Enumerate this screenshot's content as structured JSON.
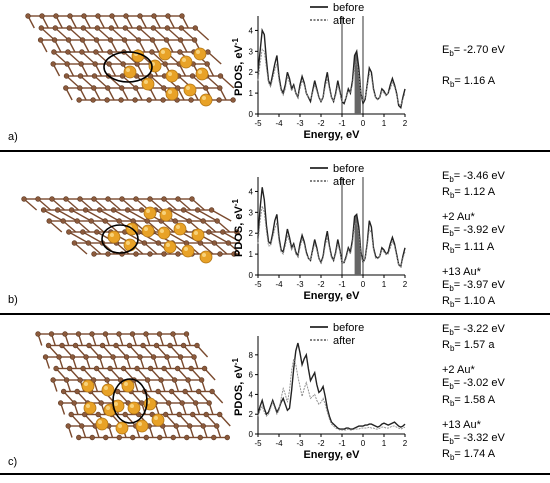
{
  "panels": [
    {
      "label": "a)",
      "legend": [
        "before",
        "after"
      ],
      "ylabel": "PDOS, eV",
      "ylabel_sup": "-1",
      "xlabel": "Energy, eV",
      "notes": [
        [
          {
            "sym": "E",
            "sub": "b",
            "val": "= -2.70 eV"
          }
        ],
        [
          {
            "sym": "R",
            "sub": "b",
            "val": "= 1.16 A"
          }
        ]
      ]
    },
    {
      "label": "b)",
      "legend": [
        "before",
        "after"
      ],
      "ylabel": "PDOS, eV",
      "ylabel_sup": "-1",
      "xlabel": "Energy, eV",
      "notes": [
        [
          {
            "sym": "E",
            "sub": "b",
            "val": "= -3.46 eV"
          },
          {
            "sym": "R",
            "sub": "b",
            "val": "= 1.12 A"
          }
        ],
        [
          {
            "plain": "+2 Au*"
          },
          {
            "sym": "E",
            "sub": "b",
            "val": "= -3.92 eV"
          },
          {
            "sym": "R",
            "sub": "b",
            "val": "= 1.11 A"
          }
        ],
        [
          {
            "plain": "+13 Au*"
          },
          {
            "sym": "E",
            "sub": "b",
            "val": "= -3.97 eV"
          },
          {
            "sym": "R",
            "sub": "b",
            "val": "= 1.10 A"
          }
        ]
      ]
    },
    {
      "label": "c)",
      "legend": [
        "before",
        "after"
      ],
      "ylabel": "PDOS, eV",
      "ylabel_sup": "-1",
      "xlabel": "Energy, eV",
      "notes": [
        [
          {
            "sym": "E",
            "sub": "b",
            "val": "= -3.22 eV"
          },
          {
            "sym": "R",
            "sub": "b",
            "val": "= 1.57 a"
          }
        ],
        [
          {
            "plain": "+2 Au*"
          },
          {
            "sym": "E",
            "sub": "b",
            "val": "= -3.02 eV"
          },
          {
            "sym": "R",
            "sub": "b",
            "val": "= 1.58 A"
          }
        ],
        [
          {
            "plain": "+13 Au*"
          },
          {
            "sym": "E",
            "sub": "b",
            "val": "= -3.32 eV"
          },
          {
            "sym": "R",
            "sub": "b",
            "val": "= 1.74 A"
          }
        ]
      ]
    }
  ],
  "chart_data": [
    {
      "type": "line",
      "xlim": [
        -5,
        2
      ],
      "ylim": [
        0,
        4.5
      ],
      "xticks": [
        -5,
        -4,
        -3,
        -2,
        -1,
        0,
        1,
        2
      ],
      "yticks": [
        0,
        1,
        2,
        3,
        4
      ],
      "vlines": [
        -1,
        0
      ],
      "shade": [
        -0.4,
        -0.1
      ],
      "colors": {
        "before": "#222222",
        "after": "#888888",
        "shade": "#666666"
      },
      "series": [
        {
          "name": "before",
          "x": [
            -5,
            -4.9,
            -4.8,
            -4.7,
            -4.6,
            -4.5,
            -4.4,
            -4.3,
            -4.2,
            -4.1,
            -4.0,
            -3.9,
            -3.8,
            -3.7,
            -3.6,
            -3.5,
            -3.4,
            -3.3,
            -3.2,
            -3.1,
            -3.0,
            -2.9,
            -2.8,
            -2.7,
            -2.6,
            -2.5,
            -2.4,
            -2.3,
            -2.2,
            -2.1,
            -2.0,
            -1.9,
            -1.8,
            -1.7,
            -1.6,
            -1.5,
            -1.4,
            -1.3,
            -1.2,
            -1.1,
            -1.0,
            -0.9,
            -0.8,
            -0.7,
            -0.6,
            -0.5,
            -0.4,
            -0.3,
            -0.2,
            -0.1,
            0.0,
            0.1,
            0.2,
            0.3,
            0.4,
            0.5,
            0.6,
            0.7,
            0.8,
            0.9,
            1.0,
            1.1,
            1.2,
            1.3,
            1.4,
            1.5,
            1.6,
            1.7,
            1.8,
            1.9,
            2.0
          ],
          "y": [
            2.0,
            3.0,
            4.0,
            3.8,
            2.6,
            1.6,
            1.4,
            1.9,
            2.4,
            2.8,
            1.8,
            1.2,
            1.0,
            1.4,
            2.0,
            1.7,
            1.2,
            1.4,
            1.0,
            0.8,
            1.4,
            1.8,
            1.5,
            1.0,
            0.8,
            0.6,
            1.1,
            1.6,
            1.2,
            0.8,
            0.6,
            0.8,
            1.5,
            2.0,
            1.3,
            0.8,
            0.6,
            1.0,
            1.6,
            1.1,
            0.6,
            0.5,
            0.8,
            1.2,
            1.0,
            1.6,
            2.8,
            3.0,
            2.2,
            1.0,
            0.5,
            0.7,
            1.4,
            2.2,
            2.0,
            1.2,
            0.8,
            0.7,
            0.8,
            1.2,
            1.1,
            0.9,
            1.0,
            1.4,
            1.7,
            1.4,
            1.0,
            0.4,
            0.3,
            0.8,
            1.2
          ]
        },
        {
          "name": "after",
          "x": [
            -5,
            -4.9,
            -4.8,
            -4.7,
            -4.6,
            -4.5,
            -4.4,
            -4.3,
            -4.2,
            -4.1,
            -4.0,
            -3.9,
            -3.8,
            -3.7,
            -3.6,
            -3.5,
            -3.4,
            -3.3,
            -3.2,
            -3.1,
            -3.0,
            -2.9,
            -2.8,
            -2.7,
            -2.6,
            -2.5,
            -2.4,
            -2.3,
            -2.2,
            -2.1,
            -2.0,
            -1.9,
            -1.8,
            -1.7,
            -1.6,
            -1.5,
            -1.4,
            -1.3,
            -1.2,
            -1.1,
            -1.0,
            -0.9,
            -0.8,
            -0.7,
            -0.6,
            -0.5,
            -0.4,
            -0.3,
            -0.2,
            -0.1,
            0.0,
            0.1,
            0.2,
            0.3,
            0.4,
            0.5,
            0.6,
            0.7,
            0.8,
            0.9,
            1.0,
            1.1,
            1.2,
            1.3,
            1.4,
            1.5,
            1.6,
            1.7,
            1.8,
            1.9,
            2.0
          ],
          "y": [
            1.6,
            2.4,
            3.1,
            3.0,
            2.2,
            1.5,
            1.3,
            1.7,
            2.1,
            2.4,
            1.6,
            1.1,
            0.9,
            1.2,
            1.8,
            1.5,
            1.1,
            1.3,
            1.0,
            0.8,
            1.2,
            1.6,
            1.4,
            1.0,
            0.8,
            0.7,
            1.0,
            1.4,
            1.1,
            0.8,
            0.6,
            0.8,
            1.3,
            1.7,
            1.2,
            0.8,
            0.6,
            0.9,
            1.4,
            1.0,
            0.6,
            0.6,
            0.8,
            1.1,
            1.0,
            1.4,
            2.3,
            2.5,
            1.9,
            1.0,
            0.6,
            0.8,
            1.3,
            1.9,
            1.8,
            1.1,
            0.8,
            0.7,
            0.8,
            1.1,
            1.0,
            0.9,
            1.0,
            1.2,
            1.5,
            1.3,
            0.9,
            0.5,
            0.4,
            0.7,
            1.0
          ]
        }
      ]
    },
    {
      "type": "line",
      "xlim": [
        -5,
        2
      ],
      "ylim": [
        0,
        4.5
      ],
      "xticks": [
        -5,
        -4,
        -3,
        -2,
        -1,
        0,
        1,
        2
      ],
      "yticks": [
        0,
        1,
        2,
        3,
        4
      ],
      "vlines": [
        -1,
        0
      ],
      "shade": [
        -0.4,
        -0.1
      ],
      "colors": {
        "before": "#222222",
        "after": "#888888",
        "shade": "#666666"
      },
      "series": [
        {
          "name": "before",
          "x": [
            -5,
            -4.9,
            -4.8,
            -4.7,
            -4.6,
            -4.5,
            -4.4,
            -4.3,
            -4.2,
            -4.1,
            -4.0,
            -3.9,
            -3.8,
            -3.7,
            -3.6,
            -3.5,
            -3.4,
            -3.3,
            -3.2,
            -3.1,
            -3.0,
            -2.9,
            -2.8,
            -2.7,
            -2.6,
            -2.5,
            -2.4,
            -2.3,
            -2.2,
            -2.1,
            -2.0,
            -1.9,
            -1.8,
            -1.7,
            -1.6,
            -1.5,
            -1.4,
            -1.3,
            -1.2,
            -1.1,
            -1.0,
            -0.9,
            -0.8,
            -0.7,
            -0.6,
            -0.5,
            -0.4,
            -0.3,
            -0.2,
            -0.1,
            0.0,
            0.1,
            0.2,
            0.3,
            0.4,
            0.5,
            0.6,
            0.7,
            0.8,
            0.9,
            1.0,
            1.1,
            1.2,
            1.3,
            1.4,
            1.5,
            1.6,
            1.7,
            1.8,
            1.9,
            2.0
          ],
          "y": [
            1.8,
            3.2,
            4.2,
            3.6,
            2.4,
            1.6,
            1.5,
            2.0,
            2.6,
            2.9,
            1.8,
            1.2,
            1.1,
            1.6,
            2.2,
            1.8,
            1.3,
            1.5,
            1.1,
            0.9,
            1.5,
            1.9,
            1.6,
            1.1,
            0.8,
            0.7,
            1.2,
            1.7,
            1.3,
            0.8,
            0.6,
            0.9,
            1.6,
            2.1,
            1.4,
            0.9,
            0.7,
            1.1,
            1.7,
            1.2,
            0.6,
            0.6,
            0.9,
            1.3,
            1.1,
            1.7,
            2.8,
            2.9,
            2.3,
            1.1,
            0.6,
            0.8,
            1.5,
            2.6,
            2.3,
            1.3,
            0.9,
            0.8,
            0.9,
            1.3,
            1.2,
            1.0,
            1.1,
            1.5,
            1.8,
            1.5,
            1.0,
            0.5,
            0.4,
            0.9,
            1.3
          ]
        },
        {
          "name": "after",
          "x": [
            -5,
            -4.9,
            -4.8,
            -4.7,
            -4.6,
            -4.5,
            -4.4,
            -4.3,
            -4.2,
            -4.1,
            -4.0,
            -3.9,
            -3.8,
            -3.7,
            -3.6,
            -3.5,
            -3.4,
            -3.3,
            -3.2,
            -3.1,
            -3.0,
            -2.9,
            -2.8,
            -2.7,
            -2.6,
            -2.5,
            -2.4,
            -2.3,
            -2.2,
            -2.1,
            -2.0,
            -1.9,
            -1.8,
            -1.7,
            -1.6,
            -1.5,
            -1.4,
            -1.3,
            -1.2,
            -1.1,
            -1.0,
            -0.9,
            -0.8,
            -0.7,
            -0.6,
            -0.5,
            -0.4,
            -0.3,
            -0.2,
            -0.1,
            0.0,
            0.1,
            0.2,
            0.3,
            0.4,
            0.5,
            0.6,
            0.7,
            0.8,
            0.9,
            1.0,
            1.1,
            1.2,
            1.3,
            1.4,
            1.5,
            1.6,
            1.7,
            1.8,
            1.9,
            2.0
          ],
          "y": [
            1.5,
            2.6,
            3.3,
            3.0,
            2.1,
            1.4,
            1.4,
            1.8,
            2.2,
            2.5,
            1.6,
            1.1,
            1.0,
            1.4,
            1.9,
            1.6,
            1.2,
            1.4,
            1.0,
            0.9,
            1.3,
            1.7,
            1.5,
            1.0,
            0.8,
            0.7,
            1.1,
            1.5,
            1.2,
            0.8,
            0.6,
            0.8,
            1.4,
            1.8,
            1.3,
            0.8,
            0.7,
            1.0,
            1.5,
            1.1,
            0.6,
            0.6,
            0.8,
            1.2,
            1.0,
            1.5,
            2.4,
            2.5,
            2.0,
            1.0,
            0.6,
            0.8,
            1.4,
            2.2,
            2.0,
            1.2,
            0.8,
            0.8,
            0.9,
            1.2,
            1.1,
            1.0,
            1.0,
            1.3,
            1.6,
            1.4,
            0.9,
            0.5,
            0.4,
            0.8,
            1.1
          ]
        }
      ]
    },
    {
      "type": "line",
      "xlim": [
        -5,
        2
      ],
      "ylim": [
        0,
        9.5
      ],
      "xticks": [
        -5,
        -4,
        -3,
        -2,
        -1,
        0,
        1,
        2
      ],
      "yticks": [
        0,
        2,
        4,
        6,
        8
      ],
      "vlines": [],
      "shade": null,
      "colors": {
        "before": "#222222",
        "after": "#888888",
        "shade": "#666666"
      },
      "series": [
        {
          "name": "before",
          "x": [
            -5,
            -4.9,
            -4.8,
            -4.7,
            -4.6,
            -4.5,
            -4.4,
            -4.3,
            -4.2,
            -4.1,
            -4.0,
            -3.9,
            -3.8,
            -3.7,
            -3.6,
            -3.5,
            -3.4,
            -3.3,
            -3.2,
            -3.1,
            -3.0,
            -2.9,
            -2.8,
            -2.7,
            -2.6,
            -2.5,
            -2.4,
            -2.3,
            -2.2,
            -2.1,
            -2.0,
            -1.9,
            -1.8,
            -1.7,
            -1.6,
            -1.5,
            -1.4,
            -1.3,
            -1.2,
            -1.1,
            -1.0,
            -0.9,
            -0.8,
            -0.7,
            -0.6,
            -0.5,
            -0.4,
            -0.3,
            -0.2,
            -0.1,
            0.0,
            0.1,
            0.2,
            0.3,
            0.4,
            0.5,
            0.6,
            0.7,
            0.8,
            0.9,
            1.0,
            1.1,
            1.2,
            1.3,
            1.4,
            1.5,
            1.6,
            1.7,
            1.8,
            1.9,
            2.0
          ],
          "y": [
            2.0,
            2.8,
            3.4,
            2.6,
            2.0,
            2.2,
            2.8,
            3.4,
            2.8,
            2.2,
            2.6,
            3.2,
            3.6,
            3.0,
            2.4,
            2.6,
            4.4,
            6.6,
            8.4,
            9.2,
            8.2,
            7.0,
            7.6,
            8.0,
            6.6,
            5.4,
            5.8,
            6.2,
            5.0,
            4.2,
            4.4,
            4.8,
            3.8,
            2.6,
            1.8,
            1.2,
            1.0,
            0.8,
            0.6,
            0.5,
            0.5,
            0.5,
            0.6,
            0.6,
            0.5,
            0.5,
            0.6,
            0.7,
            0.8,
            0.8,
            0.8,
            0.9,
            0.9,
            1.0,
            1.0,
            0.9,
            0.8,
            0.7,
            0.8,
            1.0,
            1.1,
            1.0,
            0.9,
            1.0,
            1.1,
            1.2,
            1.0,
            0.8,
            0.7,
            0.8,
            1.0
          ]
        },
        {
          "name": "after",
          "x": [
            -5,
            -4.9,
            -4.8,
            -4.7,
            -4.6,
            -4.5,
            -4.4,
            -4.3,
            -4.2,
            -4.1,
            -4.0,
            -3.9,
            -3.8,
            -3.7,
            -3.6,
            -3.5,
            -3.4,
            -3.3,
            -3.2,
            -3.1,
            -3.0,
            -2.9,
            -2.8,
            -2.7,
            -2.6,
            -2.5,
            -2.4,
            -2.3,
            -2.2,
            -2.1,
            -2.0,
            -1.9,
            -1.8,
            -1.7,
            -1.6,
            -1.5,
            -1.4,
            -1.3,
            -1.2,
            -1.1,
            -1.0,
            -0.9,
            -0.8,
            -0.7,
            -0.6,
            -0.5,
            -0.4,
            -0.3,
            -0.2,
            -0.1,
            0.0,
            0.1,
            0.2,
            0.3,
            0.4,
            0.5,
            0.6,
            0.7,
            0.8,
            0.9,
            1.0,
            1.1,
            1.2,
            1.3,
            1.4,
            1.5,
            1.6,
            1.7,
            1.8,
            1.9,
            2.0
          ],
          "y": [
            1.8,
            2.4,
            2.8,
            2.2,
            1.8,
            2.0,
            2.6,
            3.2,
            2.6,
            2.0,
            2.4,
            3.6,
            4.6,
            4.0,
            3.2,
            4.4,
            6.4,
            7.6,
            7.0,
            5.8,
            4.8,
            3.8,
            4.6,
            5.2,
            4.4,
            3.6,
            3.8,
            4.0,
            3.4,
            3.0,
            3.2,
            3.6,
            3.0,
            2.2,
            1.5,
            1.0,
            0.8,
            0.6,
            0.5,
            0.4,
            0.4,
            0.4,
            0.4,
            0.5,
            0.4,
            0.4,
            0.5,
            0.5,
            0.5,
            0.6,
            0.6,
            0.6,
            0.6,
            0.7,
            0.6,
            0.6,
            0.5,
            0.5,
            0.6,
            0.7,
            0.7,
            0.6,
            0.6,
            0.7,
            0.8,
            0.8,
            0.7,
            0.6,
            0.5,
            0.6,
            0.7
          ]
        }
      ]
    }
  ]
}
